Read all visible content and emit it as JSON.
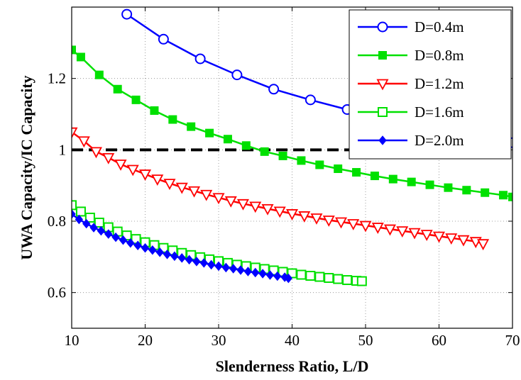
{
  "chart_data": {
    "type": "line",
    "title": "",
    "xlabel": "Slenderness Ratio, L/D",
    "ylabel": "UWA Capacity/IC Capacity",
    "xlim": [
      10,
      70
    ],
    "ylim": [
      0.5,
      1.4
    ],
    "xticks": [
      10,
      20,
      30,
      40,
      50,
      60,
      70
    ],
    "yticks": [
      0.6,
      0.8,
      1.0,
      1.2
    ],
    "ytick_labels": [
      "0.6",
      "0.8",
      "1",
      "1.2"
    ],
    "grid": true,
    "grid_style": "dotted",
    "legend_position": "top-right",
    "reference_line": {
      "y": 1.0,
      "style": "dashed",
      "color": "#000000"
    },
    "series": [
      {
        "name": "D=0.4m",
        "color": "#0000ff",
        "marker": "circle-open",
        "x": [
          17.5,
          22.5,
          27.5,
          32.5,
          37.5,
          42.5,
          47.5,
          52.5,
          57.5,
          62.5,
          70
        ],
        "y": [
          1.38,
          1.31,
          1.255,
          1.21,
          1.17,
          1.14,
          1.113,
          1.092,
          1.072,
          1.055,
          1.02
        ]
      },
      {
        "name": "D=0.8m",
        "color": "#00e000",
        "marker": "square-filled",
        "x": [
          10,
          11.25,
          13.75,
          16.25,
          18.75,
          21.25,
          23.75,
          26.25,
          28.75,
          31.25,
          33.75,
          36.25,
          38.75,
          41.25,
          43.75,
          46.25,
          48.75,
          51.25,
          53.75,
          56.25,
          58.75,
          61.25,
          63.75,
          66.25,
          68.75,
          70
        ],
        "y": [
          1.28,
          1.26,
          1.21,
          1.17,
          1.14,
          1.11,
          1.085,
          1.065,
          1.047,
          1.03,
          1.012,
          0.995,
          0.983,
          0.97,
          0.958,
          0.947,
          0.937,
          0.927,
          0.918,
          0.91,
          0.902,
          0.894,
          0.887,
          0.88,
          0.873,
          0.868
        ]
      },
      {
        "name": "D=1.2m",
        "color": "#ff0000",
        "marker": "triangle-down-open",
        "x": [
          10.0,
          11.67,
          13.33,
          15.0,
          16.67,
          18.33,
          20.0,
          21.67,
          23.33,
          25.0,
          26.67,
          28.33,
          30.0,
          31.67,
          33.33,
          35.0,
          36.67,
          38.33,
          40.0,
          41.67,
          43.33,
          45.0,
          46.67,
          48.33,
          50.0,
          51.67,
          53.33,
          55.0,
          56.67,
          58.33,
          60.0,
          61.67,
          63.33,
          65.0,
          66.0
        ],
        "y": [
          1.05,
          1.025,
          0.995,
          0.978,
          0.96,
          0.945,
          0.932,
          0.918,
          0.906,
          0.895,
          0.885,
          0.875,
          0.866,
          0.857,
          0.849,
          0.842,
          0.835,
          0.828,
          0.821,
          0.815,
          0.809,
          0.803,
          0.798,
          0.793,
          0.788,
          0.783,
          0.778,
          0.773,
          0.768,
          0.763,
          0.758,
          0.753,
          0.748,
          0.743,
          0.737
        ]
      },
      {
        "name": "D=1.6m",
        "color": "#00e000",
        "marker": "square-open",
        "x": [
          10,
          11.25,
          12.5,
          13.75,
          15,
          16.25,
          17.5,
          18.75,
          20,
          21.25,
          22.5,
          23.75,
          25,
          26.25,
          27.5,
          28.75,
          30,
          31.25,
          32.5,
          33.75,
          35,
          36.25,
          37.5,
          38.75,
          40,
          41.25,
          42.5,
          43.75,
          45,
          46.25,
          47.5,
          48.75,
          49.5
        ],
        "y": [
          0.845,
          0.827,
          0.81,
          0.796,
          0.783,
          0.771,
          0.76,
          0.75,
          0.741,
          0.733,
          0.725,
          0.718,
          0.711,
          0.705,
          0.699,
          0.693,
          0.688,
          0.683,
          0.678,
          0.674,
          0.67,
          0.666,
          0.662,
          0.658,
          0.654,
          0.65,
          0.647,
          0.644,
          0.641,
          0.638,
          0.635,
          0.633,
          0.632
        ]
      },
      {
        "name": "D=2.0m",
        "color": "#0000ff",
        "marker": "diamond-filled",
        "x": [
          10,
          11,
          12,
          13,
          14,
          15,
          16,
          17,
          18,
          19,
          20,
          21,
          22,
          23,
          24,
          25,
          26,
          27,
          28,
          29,
          30,
          31,
          32,
          33,
          34,
          35,
          36,
          37,
          38,
          39,
          39.5
        ],
        "y": [
          0.82,
          0.805,
          0.793,
          0.782,
          0.773,
          0.764,
          0.755,
          0.747,
          0.739,
          0.732,
          0.725,
          0.719,
          0.713,
          0.707,
          0.702,
          0.697,
          0.692,
          0.687,
          0.683,
          0.678,
          0.674,
          0.67,
          0.667,
          0.663,
          0.659,
          0.656,
          0.653,
          0.649,
          0.646,
          0.643,
          0.64
        ]
      }
    ]
  }
}
